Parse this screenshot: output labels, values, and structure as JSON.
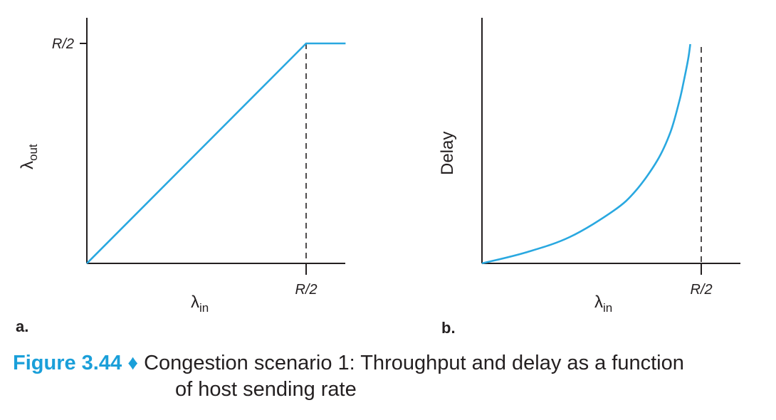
{
  "chart_data": [
    {
      "panel": "a.",
      "type": "line",
      "xlabel": "λ",
      "xlabel_sub": "in",
      "ylabel": "λ",
      "ylabel_sub": "out",
      "x_ticks": [
        "R/2"
      ],
      "y_ticks": [
        "R/2"
      ],
      "xlim": [
        0,
        0.59
      ],
      "ylim": [
        0,
        0.5
      ],
      "grid": false,
      "series": [
        {
          "color": "#29a8e0",
          "x": [
            0,
            0.5,
            0.59
          ],
          "y": [
            0,
            0.5,
            0.5
          ]
        }
      ],
      "annotations": [
        {
          "type": "vline",
          "x": 0.5,
          "style": "dashed"
        }
      ]
    },
    {
      "panel": "b.",
      "type": "line",
      "xlabel": "λ",
      "xlabel_sub": "in",
      "ylabel": "Delay",
      "x_ticks": [
        "R/2"
      ],
      "xlim": [
        0,
        0.59
      ],
      "grid": false,
      "series": [
        {
          "color": "#29a8e0",
          "x": [
            0,
            0.1,
            0.2,
            0.3,
            0.35,
            0.4,
            0.43,
            0.45,
            0.46,
            0.47,
            0.475
          ],
          "y": [
            0,
            0.05,
            0.12,
            0.24,
            0.33,
            0.47,
            0.6,
            0.74,
            0.83,
            0.93,
            1.0
          ]
        }
      ],
      "annotations": [
        {
          "type": "vline",
          "x": 0.5,
          "style": "dashed"
        }
      ]
    }
  ],
  "caption": {
    "figure_number": "Figure 3.44",
    "separator": "♦",
    "text_line1": "Congestion scenario 1: Throughput and delay as a function",
    "text_line2": "of host sending rate"
  }
}
